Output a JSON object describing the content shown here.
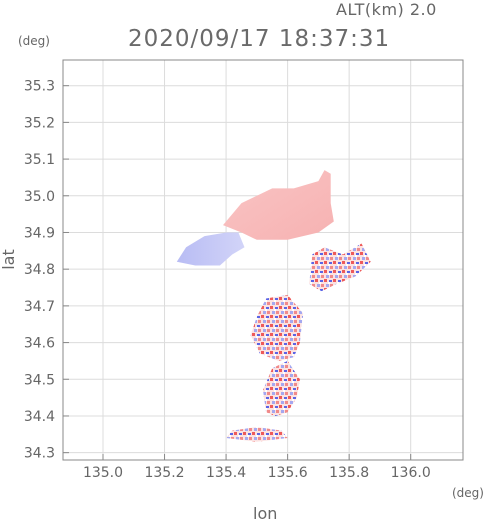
{
  "header": {
    "altitude_label": "ALT(km) 2.0",
    "datetime": "2020/09/17 18:37:31"
  },
  "chart_data": {
    "type": "heatmap",
    "title": "2020/09/17 18:37:31",
    "xlabel": "lon",
    "ylabel": "lat",
    "x_unit": "(deg)",
    "y_unit": "(deg)",
    "xlim": [
      134.87,
      136.17
    ],
    "ylim": [
      34.28,
      35.37
    ],
    "x_ticks": [
      135.0,
      135.2,
      135.4,
      135.6,
      135.8,
      136.0
    ],
    "x_tick_labels": [
      "135.0",
      "135.2",
      "135.4",
      "135.6",
      "135.8",
      "136.0"
    ],
    "y_ticks": [
      34.3,
      34.4,
      34.5,
      34.6,
      34.7,
      34.8,
      34.9,
      35.0,
      35.1,
      35.2,
      35.3
    ],
    "y_tick_labels": [
      "34.3",
      "34.4",
      "34.5",
      "34.6",
      "34.7",
      "34.8",
      "34.9",
      "35.0",
      "35.1",
      "35.2",
      "35.3"
    ],
    "grid": true,
    "colors": {
      "positive": "#f4a4a4",
      "negative": "#a4a8f0",
      "strong_positive": "#ee5a5a",
      "strong_negative": "#5a64e6"
    },
    "regions": [
      {
        "name": "northern-pink-echo",
        "polarity": "positive",
        "polygon": [
          [
            135.39,
            34.92
          ],
          [
            135.45,
            34.98
          ],
          [
            135.55,
            35.02
          ],
          [
            135.62,
            35.02
          ],
          [
            135.7,
            35.04
          ],
          [
            135.72,
            35.07
          ],
          [
            135.74,
            35.06
          ],
          [
            135.74,
            34.98
          ],
          [
            135.75,
            34.93
          ],
          [
            135.7,
            34.9
          ],
          [
            135.6,
            34.88
          ],
          [
            135.5,
            34.88
          ],
          [
            135.45,
            34.9
          ]
        ]
      },
      {
        "name": "western-blue-echo",
        "polarity": "negative",
        "polygon": [
          [
            135.24,
            34.82
          ],
          [
            135.27,
            34.86
          ],
          [
            135.33,
            34.89
          ],
          [
            135.4,
            34.9
          ],
          [
            135.44,
            34.9
          ],
          [
            135.46,
            34.86
          ],
          [
            135.42,
            34.84
          ],
          [
            135.38,
            34.81
          ],
          [
            135.3,
            34.81
          ]
        ]
      },
      {
        "name": "central-speckled-echo",
        "polarity": "mixed",
        "polygon": [
          [
            135.48,
            34.62
          ],
          [
            135.5,
            34.67
          ],
          [
            135.53,
            34.72
          ],
          [
            135.6,
            34.73
          ],
          [
            135.65,
            34.68
          ],
          [
            135.64,
            34.6
          ],
          [
            135.62,
            34.56
          ],
          [
            135.57,
            34.55
          ],
          [
            135.51,
            34.57
          ]
        ]
      },
      {
        "name": "southern-speckled-echo",
        "polarity": "mixed",
        "polygon": [
          [
            135.53,
            34.41
          ],
          [
            135.52,
            34.47
          ],
          [
            135.55,
            34.53
          ],
          [
            135.6,
            34.55
          ],
          [
            135.64,
            34.5
          ],
          [
            135.63,
            34.45
          ],
          [
            135.6,
            34.41
          ],
          [
            135.56,
            34.4
          ]
        ]
      },
      {
        "name": "eastern-speckled-echo",
        "polarity": "mixed",
        "polygon": [
          [
            135.67,
            34.76
          ],
          [
            135.68,
            34.84
          ],
          [
            135.72,
            34.86
          ],
          [
            135.78,
            34.84
          ],
          [
            135.84,
            34.87
          ],
          [
            135.87,
            34.82
          ],
          [
            135.82,
            34.78
          ],
          [
            135.76,
            34.76
          ],
          [
            135.71,
            34.74
          ]
        ]
      },
      {
        "name": "southern-tail-echo",
        "polarity": "mixed",
        "polygon": [
          [
            135.4,
            34.34
          ],
          [
            135.42,
            34.36
          ],
          [
            135.5,
            34.37
          ],
          [
            135.58,
            34.36
          ],
          [
            135.6,
            34.34
          ],
          [
            135.5,
            34.33
          ]
        ]
      }
    ]
  }
}
